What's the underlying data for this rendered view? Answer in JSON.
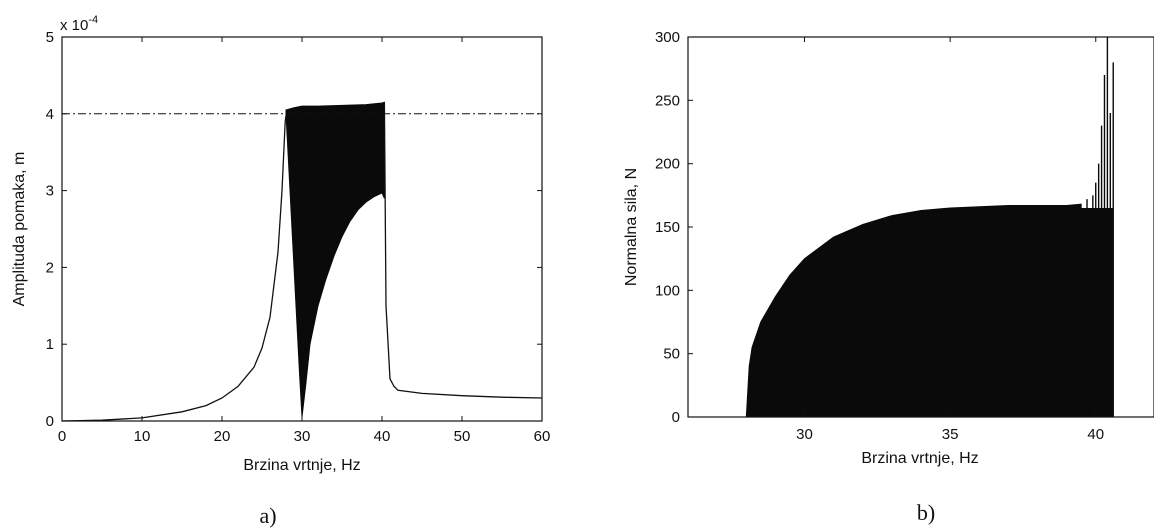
{
  "chart_data": [
    {
      "type": "area",
      "panel_label": "a)",
      "xlabel": "Brzina vrtnje,  Hz",
      "ylabel": "Amplituda pomaka, m",
      "exponent_label": "x 10",
      "exponent_power": "-4",
      "xlim": [
        0,
        60
      ],
      "ylim": [
        0,
        5
      ],
      "xticks": [
        "0",
        "10",
        "20",
        "30",
        "40",
        "50",
        "60"
      ],
      "yticks": [
        "0",
        "1",
        "2",
        "3",
        "4",
        "5"
      ],
      "reference_line": {
        "style": "dash-dot",
        "y": 4.0
      },
      "series": [
        {
          "line_points": [
            [
              0,
              0.0
            ],
            [
              5,
              0.01
            ],
            [
              10,
              0.04
            ],
            [
              15,
              0.12
            ],
            [
              18,
              0.2
            ],
            [
              20,
              0.3
            ],
            [
              22,
              0.45
            ],
            [
              24,
              0.7
            ],
            [
              25,
              0.95
            ],
            [
              26,
              1.35
            ],
            [
              27,
              2.2
            ],
            [
              27.5,
              3.0
            ],
            [
              27.9,
              3.9
            ],
            [
              28.1,
              4.05
            ]
          ],
          "band_upper": [
            [
              28,
              4.05
            ],
            [
              29,
              4.08
            ],
            [
              30,
              4.1
            ],
            [
              32,
              4.1
            ],
            [
              35,
              4.11
            ],
            [
              38,
              4.12
            ],
            [
              40,
              4.14
            ],
            [
              40.3,
              4.15
            ]
          ],
          "band_lower": [
            [
              28,
              4.0
            ],
            [
              29,
              2.0
            ],
            [
              29.7,
              0.6
            ],
            [
              30,
              0.05
            ],
            [
              30.5,
              0.5
            ],
            [
              31,
              1.0
            ],
            [
              32,
              1.5
            ],
            [
              33,
              1.85
            ],
            [
              34,
              2.15
            ],
            [
              35,
              2.4
            ],
            [
              36,
              2.6
            ],
            [
              37,
              2.75
            ],
            [
              38,
              2.85
            ],
            [
              39,
              2.92
            ],
            [
              40,
              2.97
            ],
            [
              40.3,
              2.9
            ]
          ],
          "tail_points": [
            [
              40.5,
              1.5
            ],
            [
              41,
              0.55
            ],
            [
              41.5,
              0.45
            ],
            [
              42,
              0.4
            ],
            [
              45,
              0.36
            ],
            [
              50,
              0.33
            ],
            [
              55,
              0.31
            ],
            [
              60,
              0.3
            ]
          ]
        }
      ]
    },
    {
      "type": "area",
      "panel_label": "b)",
      "xlabel": "Brzina vrtnje,  Hz",
      "ylabel": "Normalna sila, N",
      "xlim": [
        26,
        42
      ],
      "ylim": [
        0,
        300
      ],
      "xticks": [
        "30",
        "35",
        "40"
      ],
      "xtick_values": [
        30,
        35,
        40
      ],
      "yticks": [
        "0",
        "50",
        "100",
        "150",
        "200",
        "250",
        "300"
      ],
      "series": [
        {
          "envelope": [
            [
              28.0,
              0
            ],
            [
              28.1,
              40
            ],
            [
              28.2,
              55
            ],
            [
              28.5,
              75
            ],
            [
              29,
              95
            ],
            [
              29.5,
              112
            ],
            [
              30,
              125
            ],
            [
              31,
              142
            ],
            [
              32,
              152
            ],
            [
              33,
              159
            ],
            [
              34,
              163
            ],
            [
              35,
              165
            ],
            [
              36,
              166
            ],
            [
              37,
              167
            ],
            [
              38,
              167
            ],
            [
              39,
              167
            ],
            [
              39.5,
              168
            ]
          ],
          "spikes": [
            [
              39.7,
              172
            ],
            [
              39.9,
              175
            ],
            [
              40.0,
              185
            ],
            [
              40.1,
              200
            ],
            [
              40.2,
              230
            ],
            [
              40.3,
              270
            ],
            [
              40.4,
              300
            ],
            [
              40.5,
              240
            ],
            [
              40.55,
              100
            ],
            [
              40.6,
              280
            ]
          ]
        }
      ]
    }
  ]
}
